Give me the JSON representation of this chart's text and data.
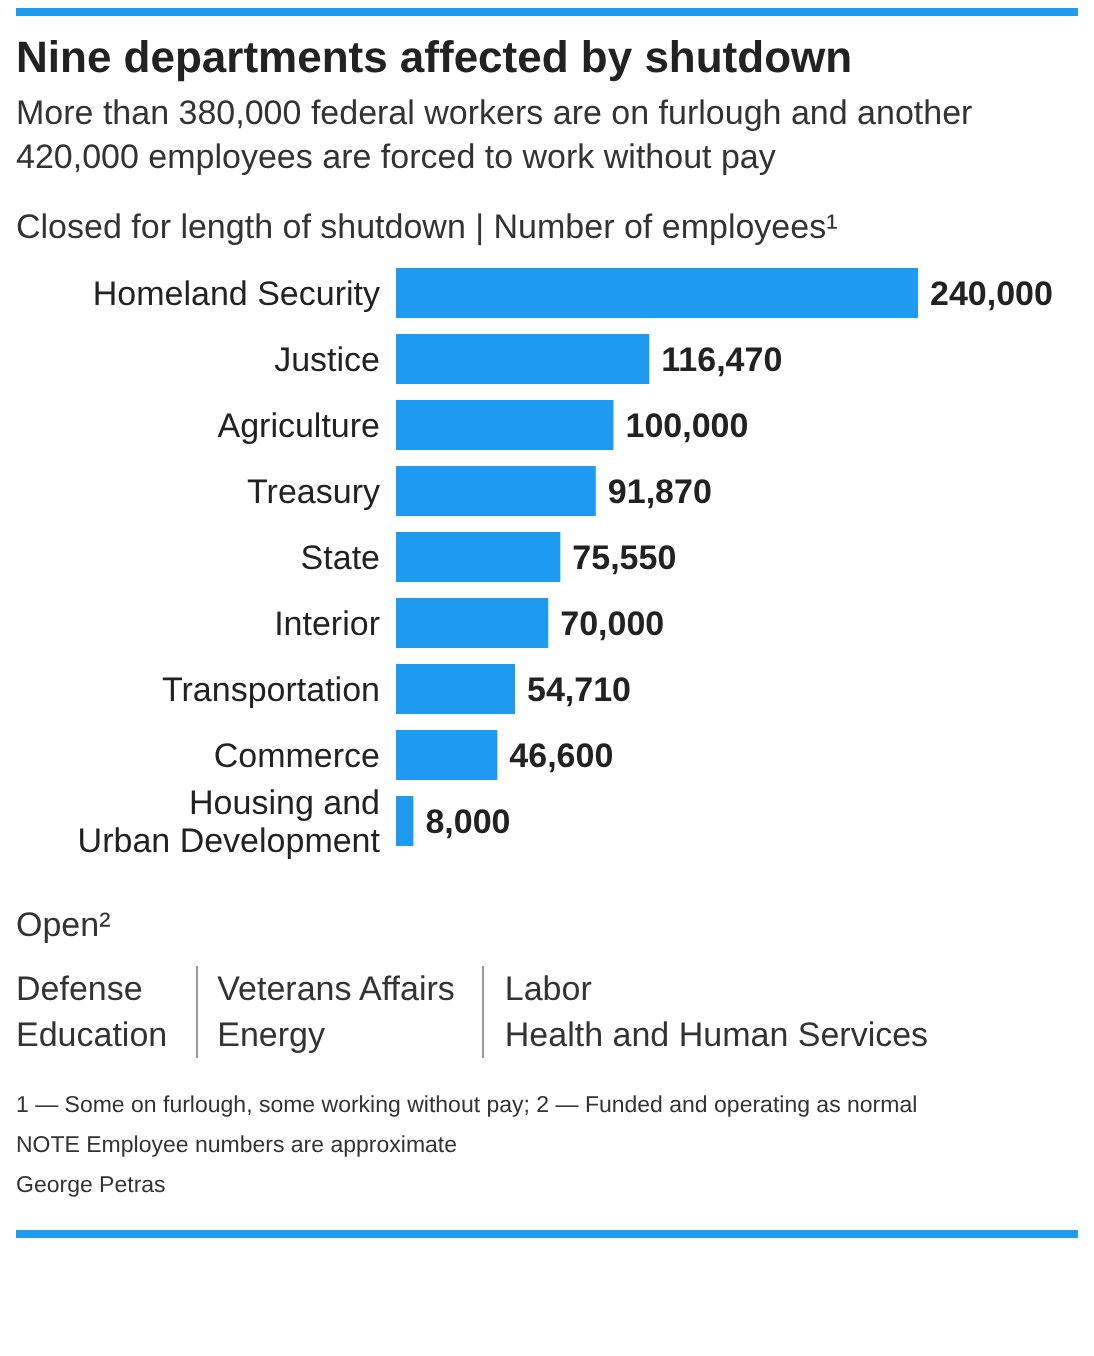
{
  "chart_data": [
    {
      "type": "bar",
      "orientation": "horizontal",
      "title": "Nine departments affected by shutdown",
      "subtitle": "More than 380,000 federal workers are on furlough and another 420,000 employees are forced to work without pay",
      "annotations": [
        "Closed for length of shutdown | Number of employees¹"
      ],
      "categories": [
        "Homeland Security",
        "Justice",
        "Agriculture",
        "Treasury",
        "State",
        "Interior",
        "Transportation",
        "Commerce",
        "Housing and\nUrban Development"
      ],
      "values": [
        240000,
        116470,
        100000,
        91870,
        75550,
        70000,
        54710,
        46600,
        8000
      ],
      "color": "#1e9af0",
      "value_labels": [
        "240,000",
        "116,470",
        "100,000",
        "91,870",
        "75,550",
        "70,000",
        "54,710",
        "46,600",
        "8,000"
      ],
      "grid": false,
      "legend": false
    },
    {
      "type": "other",
      "title": "Open²",
      "annotations": [
        "Defense",
        "Education",
        "Veterans Affairs",
        "Energy",
        "Labor",
        "Health and Human Services"
      ]
    },
    {
      "type": "other",
      "annotations": [
        "1 — Some on furlough, some working without pay; 2 — Funded and operating as normal",
        "NOTE Employee numbers are approximate",
        "George Petras"
      ]
    }
  ]
}
